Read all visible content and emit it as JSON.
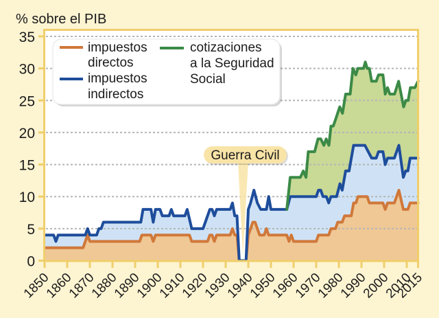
{
  "colors": {
    "background": "#fdf4d2",
    "plot_background": "#ffffff",
    "frame": "#f0cf6b",
    "grid": "#b5b5b5",
    "callout_fill": "#f9e4a7"
  },
  "chart_data": {
    "type": "area",
    "stacked": true,
    "values_are_cumulative_line_tops": true,
    "title": "",
    "xlabel": "",
    "ylabel": "% sobre el PIB",
    "xlim": [
      1850,
      2015
    ],
    "ylim": [
      0,
      35
    ],
    "yticks": [
      0,
      5,
      10,
      15,
      20,
      25,
      30,
      35
    ],
    "xticks": [
      1850,
      1860,
      1870,
      1880,
      1890,
      1900,
      1910,
      1920,
      1930,
      1940,
      1950,
      1960,
      1970,
      1980,
      1990,
      2000,
      2010,
      2015
    ],
    "grid": true,
    "grid_style": "dotted horizontal",
    "legend": {
      "position": "top-left",
      "entries": [
        {
          "series": 0,
          "lines": [
            "impuestos",
            "directos"
          ]
        },
        {
          "series": 1,
          "lines": [
            "impuestos",
            "indirectos"
          ]
        },
        {
          "series": 2,
          "lines": [
            "cotizaciones",
            "a la Seguridad",
            "Social"
          ]
        }
      ]
    },
    "series": [
      {
        "name": "impuestos directos",
        "color": "#d0783a",
        "fill": "#efc896",
        "points": [
          [
            1850,
            2
          ],
          [
            1867,
            2
          ],
          [
            1869,
            4
          ],
          [
            1870,
            3
          ],
          [
            1892,
            3
          ],
          [
            1893,
            4
          ],
          [
            1897,
            4
          ],
          [
            1898,
            3
          ],
          [
            1899,
            4
          ],
          [
            1914,
            4
          ],
          [
            1915,
            3
          ],
          [
            1922,
            3
          ],
          [
            1923,
            4
          ],
          [
            1924,
            4
          ],
          [
            1925,
            3
          ],
          [
            1926,
            4
          ],
          [
            1932,
            4
          ],
          [
            1933,
            5
          ],
          [
            1934,
            4
          ],
          [
            1935,
            4
          ],
          [
            1936,
            0
          ],
          [
            1939,
            0
          ],
          [
            1940,
            4
          ],
          [
            1941,
            5
          ],
          [
            1942,
            6
          ],
          [
            1943,
            6
          ],
          [
            1944,
            5
          ],
          [
            1945,
            4
          ],
          [
            1947,
            4
          ],
          [
            1948,
            5
          ],
          [
            1949,
            4
          ],
          [
            1957,
            4
          ],
          [
            1958,
            3
          ],
          [
            1959,
            4
          ],
          [
            1960,
            3
          ],
          [
            1970,
            3
          ],
          [
            1971,
            4
          ],
          [
            1975.5,
            4
          ],
          [
            1976.5,
            5
          ],
          [
            1978.5,
            5
          ],
          [
            1979.5,
            6
          ],
          [
            1981.5,
            6
          ],
          [
            1982.5,
            7
          ],
          [
            1985.5,
            7
          ],
          [
            1986.5,
            9
          ],
          [
            1987.5,
            9
          ],
          [
            1988.5,
            10
          ],
          [
            1992.5,
            10
          ],
          [
            1993.5,
            9
          ],
          [
            1999.5,
            9
          ],
          [
            2000.5,
            8
          ],
          [
            2001.5,
            9
          ],
          [
            2004.5,
            9
          ],
          [
            2006.5,
            11
          ],
          [
            2008.5,
            8
          ],
          [
            2010.5,
            8
          ],
          [
            2011.5,
            9
          ],
          [
            2015,
            9
          ]
        ]
      },
      {
        "name": "impuestos indirectos",
        "color": "#1e4d9b",
        "fill": "#cfe2f5",
        "points": [
          [
            1850,
            4
          ],
          [
            1854,
            4
          ],
          [
            1855,
            3
          ],
          [
            1856,
            4
          ],
          [
            1868,
            4
          ],
          [
            1869,
            5
          ],
          [
            1870,
            4
          ],
          [
            1873,
            4
          ],
          [
            1874,
            5
          ],
          [
            1875,
            5
          ],
          [
            1876,
            6
          ],
          [
            1892.5,
            6
          ],
          [
            1893.5,
            8
          ],
          [
            1897,
            8
          ],
          [
            1898,
            6
          ],
          [
            1899,
            8
          ],
          [
            1901,
            8
          ],
          [
            1902,
            7
          ],
          [
            1905,
            7
          ],
          [
            1906,
            8
          ],
          [
            1907,
            7
          ],
          [
            1912,
            7
          ],
          [
            1913,
            8
          ],
          [
            1915,
            5
          ],
          [
            1920,
            5
          ],
          [
            1923,
            8
          ],
          [
            1924,
            8
          ],
          [
            1925,
            7
          ],
          [
            1926,
            8
          ],
          [
            1932,
            8
          ],
          [
            1933,
            9
          ],
          [
            1934,
            7
          ],
          [
            1935,
            7
          ],
          [
            1936,
            0
          ],
          [
            1939,
            0
          ],
          [
            1940,
            8
          ],
          [
            1941,
            9
          ],
          [
            1942.5,
            11
          ],
          [
            1944,
            9
          ],
          [
            1945.5,
            8
          ],
          [
            1948,
            8
          ],
          [
            1949,
            10
          ],
          [
            1950,
            8
          ],
          [
            1957,
            8
          ],
          [
            1958.5,
            10
          ],
          [
            1970,
            10
          ],
          [
            1971,
            11
          ],
          [
            1972,
            11
          ],
          [
            1973,
            10
          ],
          [
            1974.5,
            10
          ],
          [
            1975.5,
            9
          ],
          [
            1976.5,
            10
          ],
          [
            1979,
            10
          ],
          [
            1980.5,
            12
          ],
          [
            1981.5,
            11
          ],
          [
            1983,
            14
          ],
          [
            1984.5,
            14
          ],
          [
            1985,
            15
          ],
          [
            1986.5,
            18
          ],
          [
            1991.5,
            18
          ],
          [
            1993,
            17
          ],
          [
            1994.5,
            16
          ],
          [
            1996.5,
            16
          ],
          [
            1997.5,
            17
          ],
          [
            1999.5,
            17
          ],
          [
            2000.5,
            15
          ],
          [
            2001.5,
            16
          ],
          [
            2004.5,
            16
          ],
          [
            2006.5,
            18
          ],
          [
            2008.5,
            13
          ],
          [
            2009.5,
            14
          ],
          [
            2010.5,
            14
          ],
          [
            2011.5,
            16
          ],
          [
            2015,
            16
          ]
        ]
      },
      {
        "name": "cotizaciones a la Seguridad Social",
        "color": "#3b8a46",
        "fill": "#c9d996",
        "points": [
          [
            1957,
            8
          ],
          [
            1958.5,
            13
          ],
          [
            1963,
            13
          ],
          [
            1964.3,
            14
          ],
          [
            1965.5,
            13
          ],
          [
            1966.5,
            17
          ],
          [
            1969.3,
            17
          ],
          [
            1970.8,
            19
          ],
          [
            1972,
            19
          ],
          [
            1973.4,
            18
          ],
          [
            1974.4,
            19
          ],
          [
            1975.6,
            18
          ],
          [
            1976.5,
            21
          ],
          [
            1977.5,
            21
          ],
          [
            1978.5,
            22
          ],
          [
            1980.4,
            24
          ],
          [
            1981.6,
            23
          ],
          [
            1983,
            26
          ],
          [
            1985,
            26
          ],
          [
            1986.2,
            30
          ],
          [
            1987.5,
            29
          ],
          [
            1988.4,
            30
          ],
          [
            1990.9,
            30
          ],
          [
            1991.7,
            31
          ],
          [
            1992.5,
            30
          ],
          [
            1993.5,
            30
          ],
          [
            1994.5,
            28
          ],
          [
            1996.5,
            28
          ],
          [
            1997.5,
            29
          ],
          [
            1999.5,
            29
          ],
          [
            2000.5,
            26
          ],
          [
            2001.5,
            27
          ],
          [
            2002.5,
            26
          ],
          [
            2004.6,
            26
          ],
          [
            2006.4,
            28
          ],
          [
            2008.6,
            24
          ],
          [
            2009.6,
            25
          ],
          [
            2010.6,
            25
          ],
          [
            2011.6,
            27
          ],
          [
            2013.6,
            27
          ],
          [
            2015,
            28
          ]
        ]
      }
    ],
    "annotations": [
      {
        "text": "Guerra Civil",
        "x": 1937,
        "y": 0
      }
    ]
  }
}
